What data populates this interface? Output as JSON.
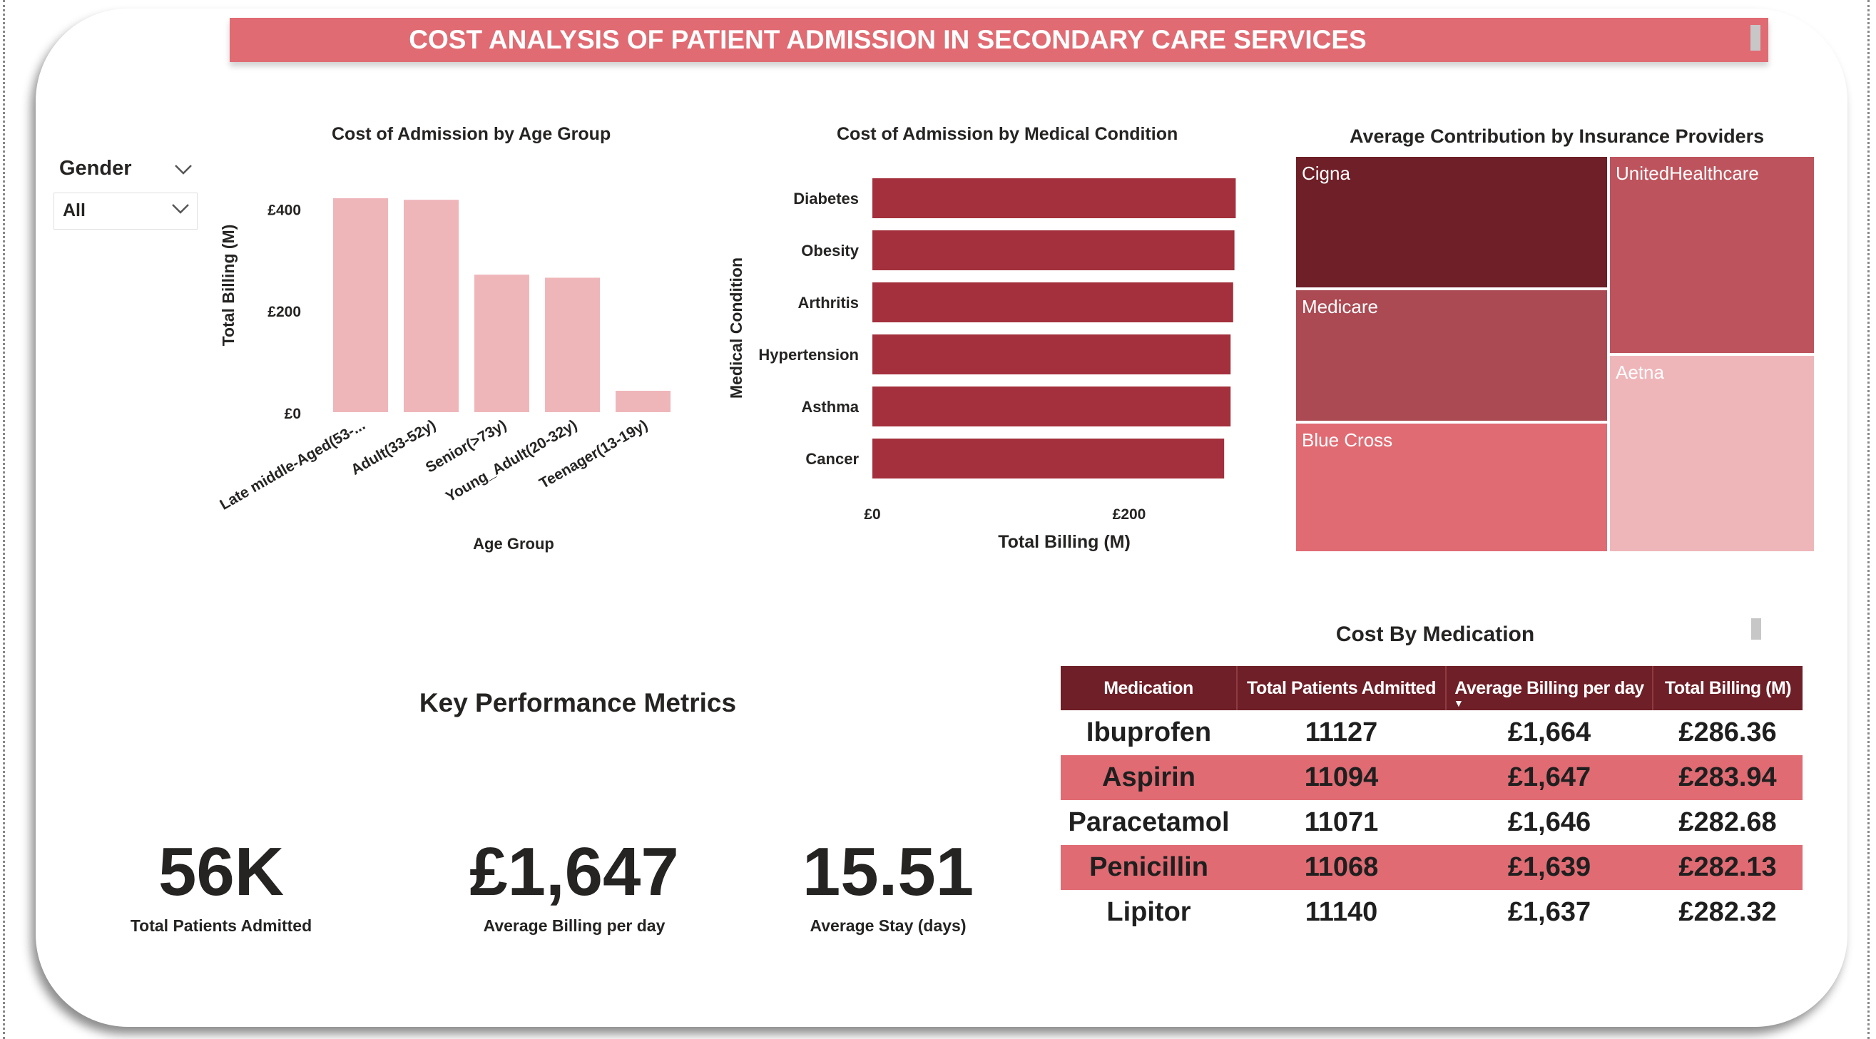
{
  "banner": {
    "title": "COST ANALYSIS OF PATIENT ADMISSION IN SECONDARY CARE SERVICES",
    "color": "#e06b73"
  },
  "slicer": {
    "label": "Gender",
    "value": "All",
    "icon": "chevron-down-icon"
  },
  "kpis": {
    "heading": "Key Performance Metrics",
    "items": [
      {
        "value": "56K",
        "label": "Total Patients Admitted"
      },
      {
        "value": "£1,647",
        "label": "Average Billing per day"
      },
      {
        "value": "15.51",
        "label": "Average Stay (days)"
      }
    ]
  },
  "table": {
    "title": "Cost By Medication",
    "columns": [
      "Medication",
      "Total Patients Admitted",
      "Average Billing per day",
      "Total Billing (M)"
    ],
    "sort_column": "Average Billing per day",
    "rows": [
      [
        "Ibuprofen",
        "11127",
        "£1,664",
        "£286.36"
      ],
      [
        "Aspirin",
        "11094",
        "£1,647",
        "£283.94"
      ],
      [
        "Paracetamol",
        "11071",
        "£1,646",
        "£282.68"
      ],
      [
        "Penicillin",
        "11068",
        "£1,639",
        "£282.13"
      ],
      [
        "Lipitor",
        "11140",
        "£1,637",
        "£282.32"
      ]
    ],
    "header_color": "#6e1f27",
    "alt_row_color": "#e06b73"
  },
  "chart_data": [
    {
      "type": "bar",
      "title": "Cost of Admission by Age Group",
      "xlabel": "Age Group",
      "ylabel": "Total Billing (M)",
      "categories": [
        "Late middle-Aged(53-...",
        "Adult(33-52y)",
        "Senior(>73y)",
        "Young_Adult(20-32y)",
        "Teenager(13-19y)"
      ],
      "values": [
        420,
        417,
        270,
        264,
        42
      ],
      "yticks": [
        0,
        200,
        400
      ],
      "ytick_labels": [
        "£0",
        "£200",
        "£400"
      ],
      "ylim": [
        0,
        420
      ],
      "grid": false,
      "color": "#efb6ba"
    },
    {
      "type": "bar",
      "orientation": "horizontal",
      "title": "Cost of Admission by Medical Condition",
      "xlabel": "Total Billing (M)",
      "ylabel": "Medical Condition",
      "categories": [
        "Diabetes",
        "Obesity",
        "Arthritis",
        "Hypertension",
        "Asthma",
        "Cancer"
      ],
      "values": [
        283,
        282,
        281,
        279,
        279,
        274
      ],
      "xticks": [
        0,
        200
      ],
      "xtick_labels": [
        "£0",
        "£200"
      ],
      "grid": false,
      "color": "#a3303c"
    },
    {
      "type": "treemap",
      "title": "Average Contribution by Insurance Providers",
      "items": [
        {
          "name": "Cigna",
          "color": "#6e1f27"
        },
        {
          "name": "Medicare",
          "color": "#ab4a53"
        },
        {
          "name": "Blue Cross",
          "color": "#e06b73"
        },
        {
          "name": "UnitedHealthcare",
          "color": "#bd545d"
        },
        {
          "name": "Aetna",
          "color": "#efb6ba"
        }
      ]
    }
  ]
}
